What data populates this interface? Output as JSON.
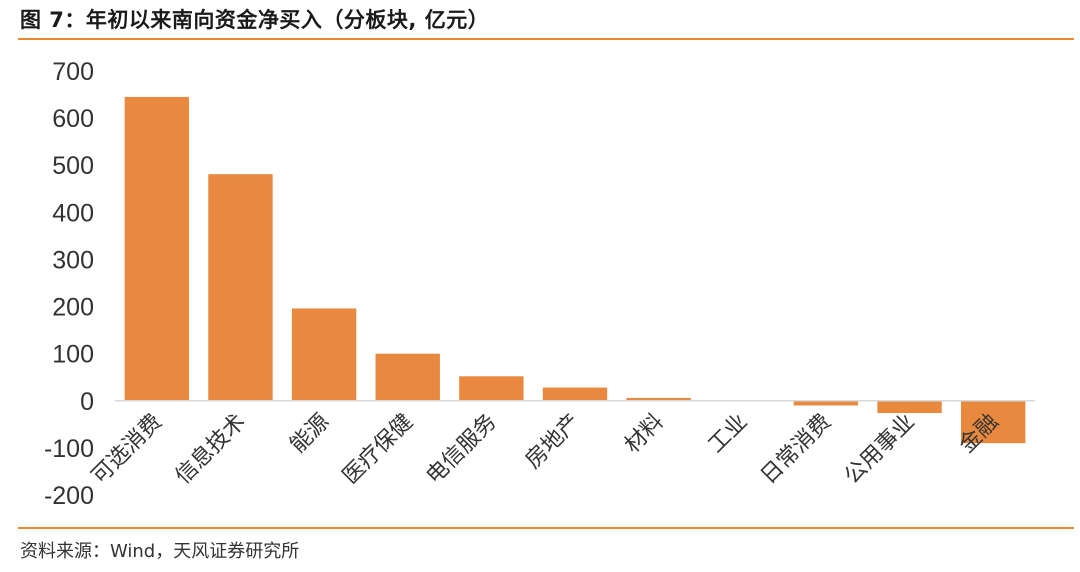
{
  "title": "图 7：年初以来南向资金净买入（分板块, 亿元）",
  "source": "资料来源：Wind，天风证券研究所",
  "colors": {
    "bar": "#e8893f",
    "rule": "#e8892f",
    "axis": "#d9d9d9"
  },
  "chart_data": {
    "type": "bar",
    "title": "",
    "xlabel": "",
    "ylabel": "",
    "ylim": [
      -200,
      700
    ],
    "yticks": [
      700,
      600,
      500,
      400,
      300,
      200,
      100,
      0,
      -100,
      -200
    ],
    "grid": false,
    "categories": [
      "可选消费",
      "信息技术",
      "能源",
      "医疗保健",
      "电信服务",
      "房地产",
      "材料",
      "工业",
      "日常消费",
      "公用事业",
      "金融"
    ],
    "values": [
      645,
      481,
      196,
      100,
      52,
      28,
      6,
      1,
      -10,
      -26,
      -90
    ]
  }
}
